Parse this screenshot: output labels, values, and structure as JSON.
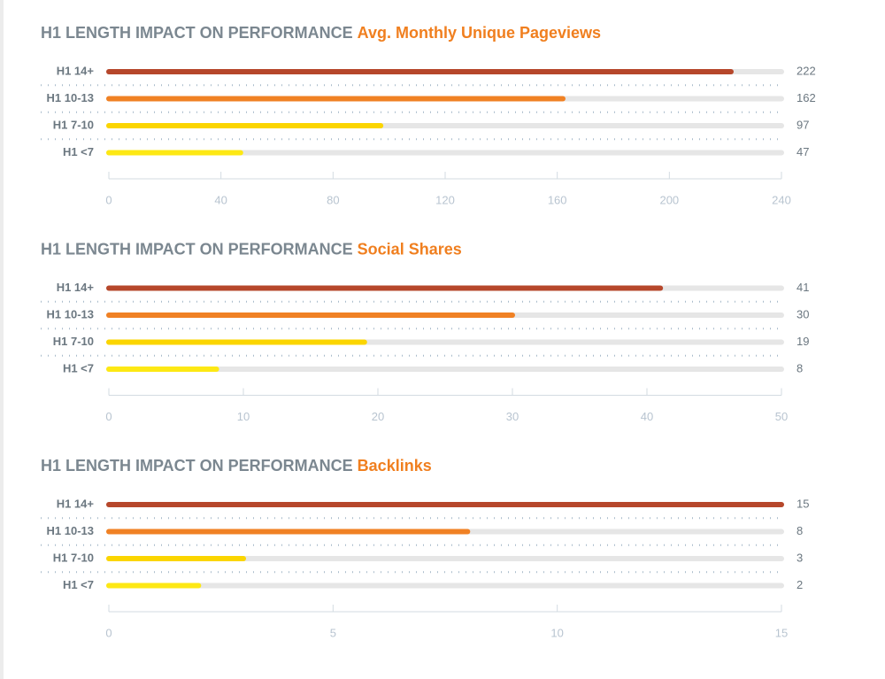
{
  "chart_data": [
    {
      "type": "bar",
      "title": "H1 LENGTH IMPACT ON PERFORMANCE",
      "subtitle": "Avg. Monthly Unique Pageviews",
      "categories": [
        "H1 14+",
        "H1 10-13",
        "H1 7-10",
        "H1 <7"
      ],
      "values": [
        222,
        162,
        97,
        47
      ],
      "colors": [
        "#b6472b",
        "#f08124",
        "#fbd500",
        "#fde814"
      ],
      "xlim": [
        0,
        240
      ],
      "xticks": [
        0,
        40,
        80,
        120,
        160,
        200,
        240
      ]
    },
    {
      "type": "bar",
      "title": "H1 LENGTH IMPACT ON PERFORMANCE",
      "subtitle": "Social Shares",
      "categories": [
        "H1 14+",
        "H1 10-13",
        "H1 7-10",
        "H1 <7"
      ],
      "values": [
        41,
        30,
        19,
        8
      ],
      "colors": [
        "#b6472b",
        "#f08124",
        "#fbd500",
        "#fde814"
      ],
      "xlim": [
        0,
        50
      ],
      "xticks": [
        0,
        10,
        20,
        30,
        40,
        50
      ]
    },
    {
      "type": "bar",
      "title": "H1 LENGTH IMPACT ON PERFORMANCE",
      "subtitle": "Backlinks",
      "categories": [
        "H1 14+",
        "H1 10-13",
        "H1 7-10",
        "H1 <7"
      ],
      "values": [
        15,
        8,
        3,
        2
      ],
      "colors": [
        "#b6472b",
        "#f08124",
        "#fbd500",
        "#fde814"
      ],
      "xlim": [
        0,
        15
      ],
      "xticks": [
        0,
        5,
        10,
        15
      ]
    }
  ]
}
